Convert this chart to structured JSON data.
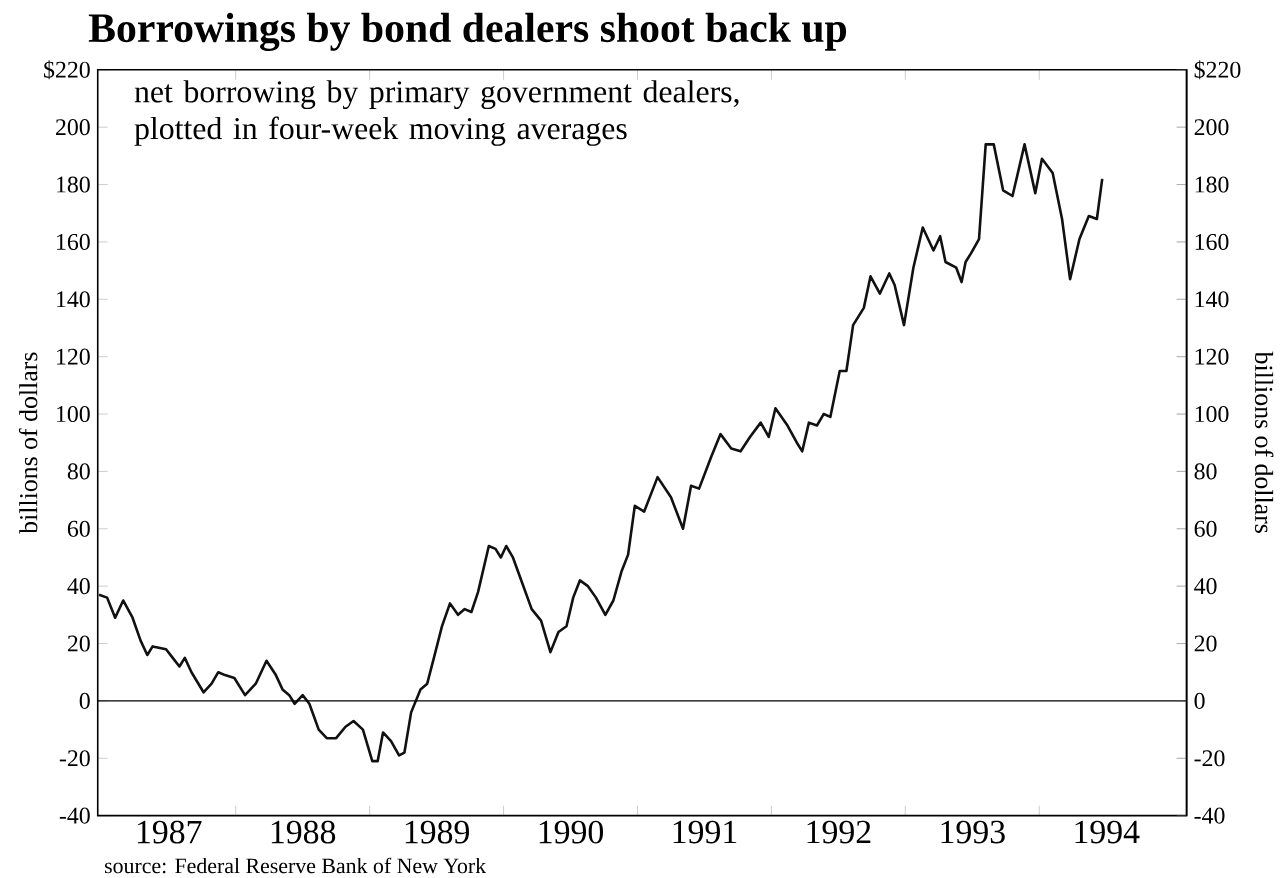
{
  "chart_data": {
    "type": "line",
    "title": "Borrowings by bond dealers shoot back up",
    "subtitle": "net borrowing by primary government dealers, plotted in four-week moving averages",
    "ylabel": "billions of dollars",
    "y2label": "billions of dollars",
    "annotations": [
      "source: Federal Reserve Bank of New York"
    ],
    "color": "#111111",
    "x": [
      1986.98,
      1987.04,
      1987.1,
      1987.16,
      1987.23,
      1987.29,
      1987.34,
      1987.38,
      1987.48,
      1987.53,
      1987.58,
      1987.62,
      1987.67,
      1987.76,
      1987.82,
      1987.87,
      1987.92,
      1987.99,
      1988.07,
      1988.15,
      1988.23,
      1988.3,
      1988.35,
      1988.4,
      1988.44,
      1988.5,
      1988.55,
      1988.62,
      1988.68,
      1988.75,
      1988.82,
      1988.88,
      1988.95,
      1989.02,
      1989.06,
      1989.1,
      1989.16,
      1989.22,
      1989.26,
      1989.31,
      1989.38,
      1989.43,
      1989.48,
      1989.54,
      1989.6,
      1989.66,
      1989.71,
      1989.76,
      1989.81,
      1989.89,
      1989.94,
      1989.98,
      1990.02,
      1990.07,
      1990.14,
      1990.21,
      1990.28,
      1990.35,
      1990.41,
      1990.47,
      1990.52,
      1990.57,
      1990.63,
      1990.69,
      1990.76,
      1990.82,
      1990.88,
      1990.93,
      1990.98,
      1991.05,
      1991.15,
      1991.25,
      1991.34,
      1991.4,
      1991.46,
      1991.55,
      1991.62,
      1991.7,
      1991.77,
      1991.84,
      1991.92,
      1991.98,
      1992.03,
      1992.12,
      1992.19,
      1992.23,
      1992.28,
      1992.34,
      1992.39,
      1992.44,
      1992.51,
      1992.56,
      1992.61,
      1992.69,
      1992.74,
      1992.81,
      1992.88,
      1992.92,
      1992.99,
      1993.06,
      1993.13,
      1993.21,
      1993.26,
      1993.3,
      1993.38,
      1993.42,
      1993.45,
      1993.49,
      1993.55,
      1993.6,
      1993.66,
      1993.73,
      1993.8,
      1993.89,
      1993.97,
      1994.02,
      1994.1,
      1994.17,
      1994.23,
      1994.3,
      1994.37,
      1994.43,
      1994.47
    ],
    "values": [
      37,
      36,
      29,
      35,
      29,
      21,
      16,
      19,
      18,
      15,
      12,
      15,
      10,
      3,
      6,
      10,
      9,
      8,
      2,
      6,
      14,
      9,
      4,
      2,
      -1,
      2,
      -1,
      -10,
      -13,
      -13,
      -9,
      -7,
      -10,
      -21,
      -21,
      -11,
      -14,
      -19,
      -18,
      -4,
      4,
      6,
      15,
      26,
      34,
      30,
      32,
      31,
      38,
      54,
      53,
      50,
      54,
      50,
      41,
      32,
      28,
      17,
      24,
      26,
      36,
      42,
      40,
      36,
      30,
      35,
      45,
      51,
      68,
      66,
      78,
      71,
      60,
      75,
      74,
      85,
      93,
      88,
      87,
      92,
      97,
      92,
      102,
      96,
      90,
      87,
      97,
      96,
      100,
      99,
      115,
      115,
      131,
      137,
      148,
      142,
      149,
      145,
      131,
      151,
      165,
      157,
      162,
      153,
      151,
      146,
      153,
      156,
      161,
      194,
      194,
      178,
      176,
      194,
      177,
      189,
      184,
      168,
      147,
      161,
      169,
      168,
      182
    ],
    "xlim": [
      1986.97,
      1995.1
    ],
    "xticks": [
      {
        "value": 1987.5,
        "label": "1987"
      },
      {
        "value": 1988,
        "label": null
      },
      {
        "value": 1988.5,
        "label": "1988"
      },
      {
        "value": 1989,
        "label": null
      },
      {
        "value": 1989.5,
        "label": "1989"
      },
      {
        "value": 1990,
        "label": null
      },
      {
        "value": 1990.5,
        "label": "1990"
      },
      {
        "value": 1991,
        "label": null
      },
      {
        "value": 1991.5,
        "label": "1991"
      },
      {
        "value": 1992,
        "label": null
      },
      {
        "value": 1992.5,
        "label": "1992"
      },
      {
        "value": 1993,
        "label": null
      },
      {
        "value": 1993.5,
        "label": "1993"
      },
      {
        "value": 1994,
        "label": null
      },
      {
        "value": 1994.5,
        "label": "1994"
      }
    ],
    "ylim": [
      -40,
      220
    ],
    "yticks": [
      -40,
      -20,
      0,
      20,
      40,
      60,
      80,
      100,
      120,
      140,
      160,
      180,
      200,
      {
        "value": 220,
        "label": "$220"
      }
    ],
    "y2lim": [
      -40,
      220
    ],
    "y2ticks": [
      -40,
      -20,
      0,
      20,
      40,
      60,
      80,
      100,
      120,
      140,
      160,
      180,
      200,
      {
        "value": 220,
        "label": "$220"
      }
    ],
    "ref_lines": [
      {
        "axis": "y",
        "value": 0
      }
    ]
  }
}
